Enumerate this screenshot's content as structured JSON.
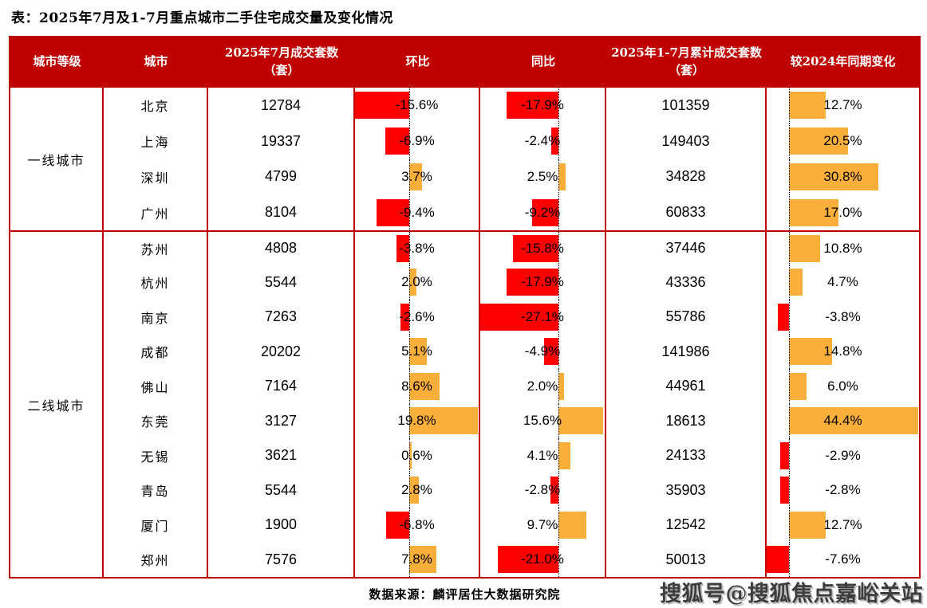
{
  "page": {
    "title": "表：2025年7月及1-7月重点城市二手住宅成交量及变化情况",
    "source_note": "数据来源：麟评居住大数据研究院",
    "watermark": "搜狐号@搜狐焦点嘉峪关站"
  },
  "colors": {
    "header_bg": "#c00000",
    "grid_line": "#c00000",
    "negative_bar": "#ff0000",
    "positive_bar": "#fbaf3b",
    "header_text": "#ffffff",
    "body_text": "#000000"
  },
  "chart_data": {
    "type": "table",
    "title": "2025年7月及1-7月重点城市二手住宅成交量及变化情况",
    "columns": [
      {
        "key": "tier",
        "label": "城市等级"
      },
      {
        "key": "city",
        "label": "城市"
      },
      {
        "key": "july-units",
        "label": "2025年7月成交套数（套）"
      },
      {
        "key": "mom",
        "label": "环比"
      },
      {
        "key": "yoy",
        "label": "同比"
      },
      {
        "key": "cum-units",
        "label": "2025年1-7月累计成交套数（套）"
      },
      {
        "key": "cum-change",
        "label": "较2024年同期变化"
      }
    ],
    "bar_columns": [
      "mom_pct",
      "yoy_pct",
      "cum_vs_2024_pct"
    ],
    "groups": [
      {
        "tier": "一线城市",
        "rows": [
          {
            "city": "北京",
            "july_units": 12784,
            "mom_pct": -15.6,
            "yoy_pct": -17.9,
            "cum_units": 101359,
            "cum_vs_2024_pct": 12.7
          },
          {
            "city": "上海",
            "july_units": 19337,
            "mom_pct": -6.9,
            "yoy_pct": -2.4,
            "cum_units": 149403,
            "cum_vs_2024_pct": 20.5
          },
          {
            "city": "深圳",
            "july_units": 4799,
            "mom_pct": 3.7,
            "yoy_pct": 2.5,
            "cum_units": 34828,
            "cum_vs_2024_pct": 30.8
          },
          {
            "city": "广州",
            "july_units": 8104,
            "mom_pct": -9.4,
            "yoy_pct": -9.2,
            "cum_units": 60833,
            "cum_vs_2024_pct": 17.0
          }
        ]
      },
      {
        "tier": "二线城市",
        "rows": [
          {
            "city": "苏州",
            "july_units": 4808,
            "mom_pct": -3.8,
            "yoy_pct": -15.8,
            "cum_units": 37446,
            "cum_vs_2024_pct": 10.8
          },
          {
            "city": "杭州",
            "july_units": 5544,
            "mom_pct": 2.0,
            "yoy_pct": -17.9,
            "cum_units": 43336,
            "cum_vs_2024_pct": 4.7
          },
          {
            "city": "南京",
            "july_units": 7263,
            "mom_pct": -2.6,
            "yoy_pct": -27.1,
            "cum_units": 55786,
            "cum_vs_2024_pct": -3.8
          },
          {
            "city": "成都",
            "july_units": 20202,
            "mom_pct": 5.1,
            "yoy_pct": -4.9,
            "cum_units": 141986,
            "cum_vs_2024_pct": 14.8
          },
          {
            "city": "佛山",
            "july_units": 7164,
            "mom_pct": 8.6,
            "yoy_pct": 2.0,
            "cum_units": 44961,
            "cum_vs_2024_pct": 6.0
          },
          {
            "city": "东莞",
            "july_units": 3127,
            "mom_pct": 19.8,
            "yoy_pct": 15.6,
            "cum_units": 18613,
            "cum_vs_2024_pct": 44.4
          },
          {
            "city": "无锡",
            "july_units": 3621,
            "mom_pct": 0.6,
            "yoy_pct": 4.1,
            "cum_units": 24133,
            "cum_vs_2024_pct": -2.9
          },
          {
            "city": "青岛",
            "july_units": 5544,
            "mom_pct": 2.8,
            "yoy_pct": -2.8,
            "cum_units": 35903,
            "cum_vs_2024_pct": -2.8
          },
          {
            "city": "厦门",
            "july_units": 1900,
            "mom_pct": -6.8,
            "yoy_pct": 9.7,
            "cum_units": 12542,
            "cum_vs_2024_pct": 12.7
          },
          {
            "city": "郑州",
            "july_units": 7576,
            "mom_pct": 7.8,
            "yoy_pct": -21.0,
            "cum_units": 50013,
            "cum_vs_2024_pct": -7.6
          }
        ]
      }
    ],
    "source": "数据来源：麟评居住大数据研究院"
  }
}
